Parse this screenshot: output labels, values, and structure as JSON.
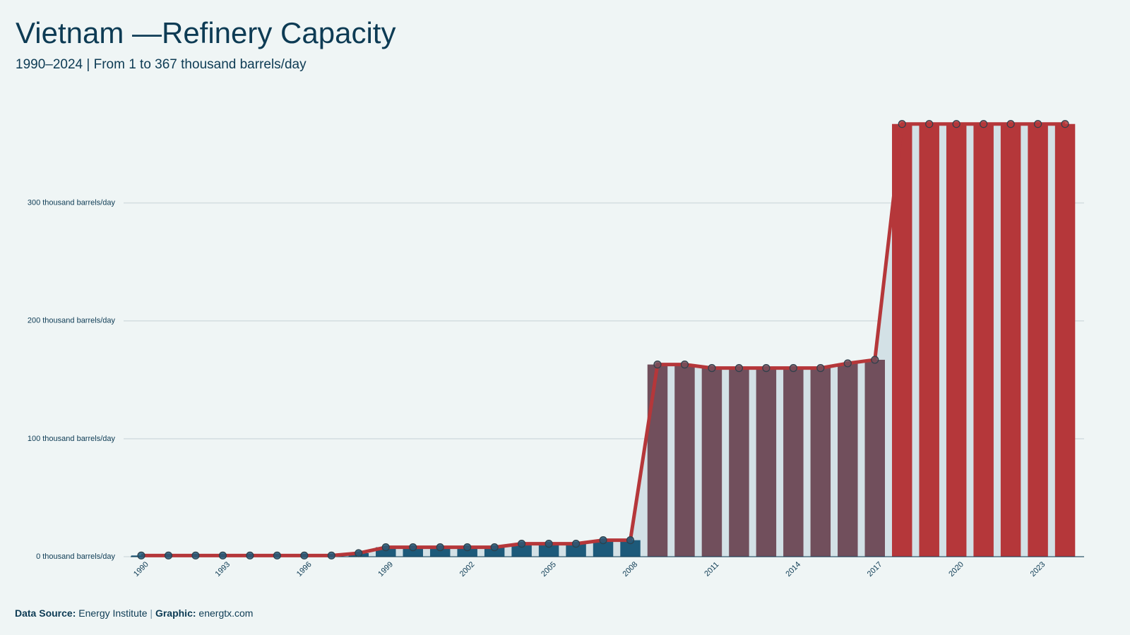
{
  "chart_data": {
    "type": "bar-line",
    "title": "Vietnam —Refinery Capacity",
    "subtitle": "1990–2024 | From 1 to 367 thousand barrels/day",
    "x": [
      1990,
      1991,
      1992,
      1993,
      1994,
      1995,
      1996,
      1997,
      1998,
      1999,
      2000,
      2001,
      2002,
      2003,
      2004,
      2005,
      2006,
      2007,
      2008,
      2009,
      2010,
      2011,
      2012,
      2013,
      2014,
      2015,
      2016,
      2017,
      2018,
      2019,
      2020,
      2021,
      2022,
      2023,
      2024
    ],
    "values": [
      1,
      1,
      1,
      1,
      1,
      1,
      1,
      1,
      3,
      8,
      8,
      8,
      8,
      8,
      11,
      11,
      11,
      14,
      14,
      163,
      163,
      160,
      160,
      160,
      160,
      160,
      164,
      167,
      367,
      367,
      367,
      367,
      367,
      367,
      367
    ],
    "colors": [
      "#1d5a7a",
      "#1d5a7a",
      "#1d5a7a",
      "#1d5a7a",
      "#1d5a7a",
      "#1d5a7a",
      "#1d5a7a",
      "#1d5a7a",
      "#1d5a7a",
      "#1d5a7a",
      "#1d5a7a",
      "#1d5a7a",
      "#1d5a7a",
      "#1d5a7a",
      "#1d5a7a",
      "#1d5a7a",
      "#1d5a7a",
      "#1d5a7a",
      "#1d5a7a",
      "#714f5c",
      "#714f5c",
      "#714f5c",
      "#714f5c",
      "#714f5c",
      "#714f5c",
      "#714f5c",
      "#714f5c",
      "#714f5c",
      "#b5373a",
      "#b5373a",
      "#b5373a",
      "#b5373a",
      "#b5373a",
      "#b5373a",
      "#b5373a"
    ],
    "line_color": "#b5373a",
    "area_color": "#d3e1e6",
    "xlim": [
      1989.35,
      2024.7
    ],
    "xticks": [
      1990,
      1993,
      1996,
      1999,
      2002,
      2005,
      2008,
      2011,
      2014,
      2017,
      2020,
      2023
    ],
    "ylim": [
      0,
      380
    ],
    "yticks": [
      {
        "value": 0,
        "label": "0 thousand barrels/day"
      },
      {
        "value": 100,
        "label": "100 thousand barrels/day"
      },
      {
        "value": 200,
        "label": "200 thousand barrels/day"
      },
      {
        "value": 300,
        "label": "300 thousand barrels/day"
      }
    ],
    "grid": true,
    "source_label": "Data Source:",
    "source": "Energy Institute",
    "separator": "|",
    "credit_label": "Graphic:",
    "credit": "energtx.com"
  }
}
